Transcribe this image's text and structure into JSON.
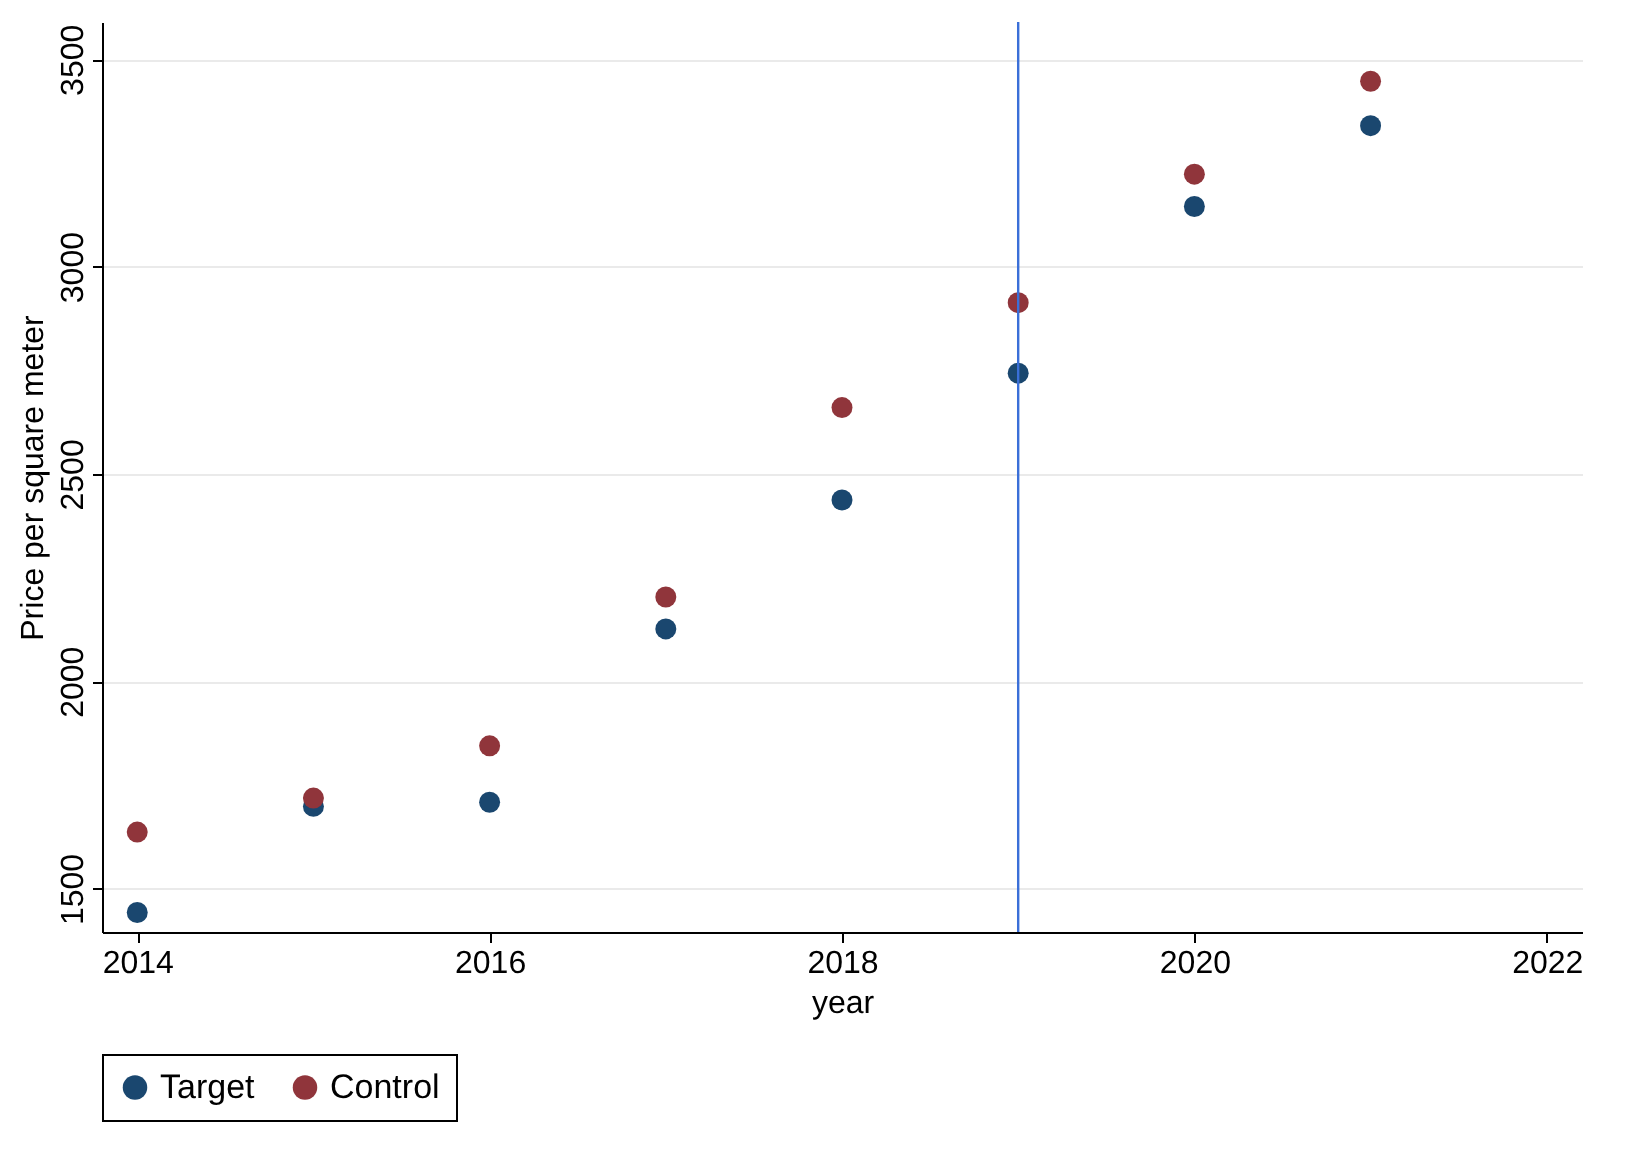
{
  "chart_data": {
    "type": "scatter",
    "xlabel": "year",
    "ylabel": "Price per square meter",
    "x": [
      2014,
      2015,
      2016,
      2017,
      2018,
      2019,
      2020,
      2021
    ],
    "series": [
      {
        "name": "Target",
        "color": "#1a476f",
        "values": [
          1442,
          1698,
          1708,
          2126,
          2437,
          2743,
          3145,
          3340
        ]
      },
      {
        "name": "Control",
        "color": "#90353b",
        "values": [
          1636,
          1718,
          1844,
          2203,
          2660,
          2913,
          3223,
          3447
        ]
      }
    ],
    "xlim": [
      2013.8,
      2022.2
    ],
    "xticks": [
      2014,
      2016,
      2018,
      2020,
      2022
    ],
    "ylim": [
      1395,
      3590
    ],
    "yticks": [
      1500,
      2000,
      2500,
      3000,
      3500
    ],
    "ref_lines": [
      {
        "axis": "x",
        "value": 2019,
        "color": "#3a6fd8"
      }
    ],
    "grid": "y",
    "legend": "bottom",
    "marker": "circle"
  }
}
